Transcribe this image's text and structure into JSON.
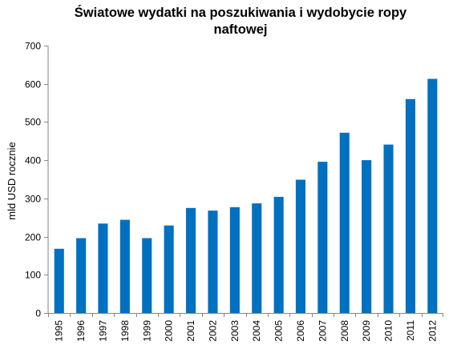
{
  "chart_data": {
    "type": "bar",
    "title": "Światowe wydatki na poszukiwania i wydobycie ropy naftowej",
    "xlabel": "",
    "ylabel": "mld USD rocznie",
    "categories": [
      "1995",
      "1996",
      "1997",
      "1998",
      "1999",
      "2000",
      "2001",
      "2002",
      "2003",
      "2004",
      "2005",
      "2006",
      "2007",
      "2008",
      "2009",
      "2010",
      "2011",
      "2012"
    ],
    "values": [
      168,
      196,
      234,
      244,
      196,
      229,
      275,
      268,
      277,
      287,
      304,
      349,
      396,
      472,
      400,
      441,
      560,
      613
    ],
    "ylim": [
      0,
      700
    ],
    "yticks": [
      0,
      100,
      200,
      300,
      400,
      500,
      600,
      700
    ],
    "grid": false,
    "legend": "none",
    "bar_color": "#0070C0"
  }
}
